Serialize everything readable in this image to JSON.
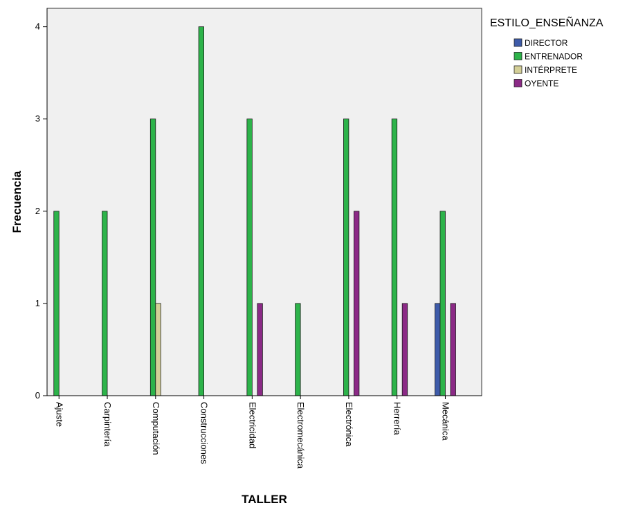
{
  "chart_data": {
    "type": "bar",
    "xlabel": "TALLER",
    "ylabel": "Frecuencia",
    "ylim": [
      0,
      4.2
    ],
    "yticks": [
      0,
      1,
      2,
      3,
      4
    ],
    "grid": false,
    "legend_title": "ESTILO_ENSEÑANZA",
    "legend_position": "top-right",
    "categories": [
      "Ajuste",
      "Carpintería",
      "Computación",
      "Construcciones",
      "Electricidad",
      "Electromecánica",
      "Electrónica",
      "Herrería",
      "Mecánica"
    ],
    "series": [
      {
        "name": "DIRECTOR",
        "color": "#3e5ba9",
        "values": [
          0,
          0,
          0,
          0,
          0,
          0,
          0,
          0,
          1
        ]
      },
      {
        "name": "ENTRENADOR",
        "color": "#2db34a",
        "values": [
          2,
          2,
          3,
          4,
          3,
          1,
          3,
          3,
          2
        ]
      },
      {
        "name": "INTÉRPRETE",
        "color": "#d4cf97",
        "values": [
          0,
          0,
          1,
          0,
          0,
          0,
          0,
          0,
          0
        ]
      },
      {
        "name": "OYENTE",
        "color": "#8b2a86",
        "values": [
          0,
          0,
          0,
          0,
          1,
          0,
          2,
          1,
          1
        ]
      }
    ],
    "plot_background": "#f0f0f0"
  }
}
